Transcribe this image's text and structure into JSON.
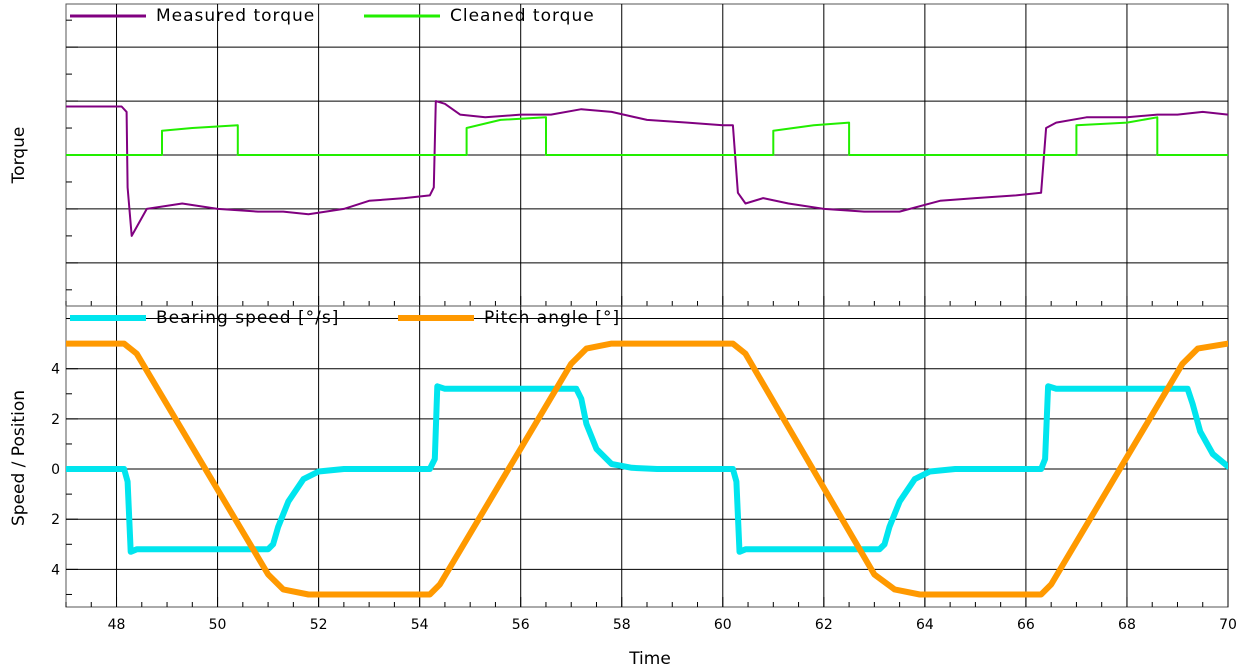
{
  "chart_data": [
    {
      "type": "line",
      "ylabel": "Torque",
      "xlim": [
        47,
        70
      ],
      "ylim": [
        -5.6,
        5.6
      ],
      "yticks_labeled": false,
      "grid": true,
      "legend_placement": "top-left",
      "series": [
        {
          "name": "Measured torque",
          "color": "#800080",
          "points": [
            [
              47,
              1.8
            ],
            [
              48.1,
              1.8
            ],
            [
              48.2,
              1.6
            ],
            [
              48.22,
              -1.2
            ],
            [
              48.3,
              -3.0
            ],
            [
              48.6,
              -2.0
            ],
            [
              49.3,
              -1.8
            ],
            [
              50.0,
              -2.0
            ],
            [
              50.8,
              -2.1
            ],
            [
              51.3,
              -2.1
            ],
            [
              51.8,
              -2.2
            ],
            [
              52.5,
              -2.0
            ],
            [
              53.0,
              -1.7
            ],
            [
              53.7,
              -1.6
            ],
            [
              54.2,
              -1.5
            ],
            [
              54.28,
              -1.2
            ],
            [
              54.32,
              2.0
            ],
            [
              54.5,
              1.9
            ],
            [
              54.8,
              1.5
            ],
            [
              55.3,
              1.4
            ],
            [
              56.0,
              1.5
            ],
            [
              56.6,
              1.5
            ],
            [
              57.2,
              1.7
            ],
            [
              57.8,
              1.6
            ],
            [
              58.5,
              1.3
            ],
            [
              59.3,
              1.2
            ],
            [
              60.0,
              1.1
            ],
            [
              60.2,
              1.1
            ],
            [
              60.3,
              -1.4
            ],
            [
              60.45,
              -1.8
            ],
            [
              60.8,
              -1.6
            ],
            [
              61.3,
              -1.8
            ],
            [
              62.0,
              -2.0
            ],
            [
              62.8,
              -2.1
            ],
            [
              63.5,
              -2.1
            ],
            [
              64.3,
              -1.7
            ],
            [
              65.0,
              -1.6
            ],
            [
              65.8,
              -1.5
            ],
            [
              66.3,
              -1.4
            ],
            [
              66.4,
              1.0
            ],
            [
              66.6,
              1.2
            ],
            [
              67.2,
              1.4
            ],
            [
              68.0,
              1.4
            ],
            [
              68.6,
              1.5
            ],
            [
              69.0,
              1.5
            ],
            [
              69.5,
              1.6
            ],
            [
              70,
              1.5
            ]
          ]
        },
        {
          "name": "Cleaned torque",
          "color": "#22ee00",
          "points": [
            [
              47,
              0
            ],
            [
              48.9,
              0
            ],
            [
              48.9,
              0.9
            ],
            [
              49.5,
              1.0
            ],
            [
              50.4,
              1.1
            ],
            [
              50.4,
              0
            ],
            [
              54.93,
              0
            ],
            [
              54.93,
              1.0
            ],
            [
              55.6,
              1.3
            ],
            [
              56.5,
              1.4
            ],
            [
              56.5,
              0
            ],
            [
              61.0,
              0
            ],
            [
              61.0,
              0.9
            ],
            [
              61.8,
              1.1
            ],
            [
              62.5,
              1.2
            ],
            [
              62.5,
              0
            ],
            [
              67.0,
              0
            ],
            [
              67.0,
              1.1
            ],
            [
              68.0,
              1.2
            ],
            [
              68.6,
              1.4
            ],
            [
              68.6,
              0
            ],
            [
              70,
              0
            ]
          ]
        }
      ]
    },
    {
      "type": "line",
      "ylabel": "Speed / Position",
      "xlabel": "Time",
      "xlim": [
        47,
        70
      ],
      "ylim": [
        -5.5,
        6.5
      ],
      "yticks": [
        {
          "value": 4,
          "label": "4"
        },
        {
          "value": 2,
          "label": "2"
        },
        {
          "value": 0,
          "label": "0"
        },
        {
          "value": -2,
          "label": "2"
        },
        {
          "value": -4,
          "label": "4"
        }
      ],
      "xticks": [
        48,
        50,
        52,
        54,
        56,
        58,
        60,
        62,
        64,
        66,
        68,
        70
      ],
      "grid": true,
      "legend_placement": "top-left",
      "series": [
        {
          "name": "Bearing speed [°/s]",
          "color": "#00e5ee",
          "points": [
            [
              47,
              0
            ],
            [
              48.15,
              0
            ],
            [
              48.22,
              -0.5
            ],
            [
              48.28,
              -3.3
            ],
            [
              48.4,
              -3.2
            ],
            [
              51.0,
              -3.2
            ],
            [
              51.1,
              -3.0
            ],
            [
              51.2,
              -2.3
            ],
            [
              51.4,
              -1.3
            ],
            [
              51.7,
              -0.4
            ],
            [
              52.0,
              -0.1
            ],
            [
              52.5,
              0
            ],
            [
              54.2,
              0
            ],
            [
              54.3,
              0.4
            ],
            [
              54.35,
              3.3
            ],
            [
              54.5,
              3.2
            ],
            [
              57.1,
              3.2
            ],
            [
              57.2,
              2.8
            ],
            [
              57.3,
              1.8
            ],
            [
              57.5,
              0.8
            ],
            [
              57.8,
              0.2
            ],
            [
              58.2,
              0.05
            ],
            [
              58.7,
              0
            ],
            [
              60.2,
              0
            ],
            [
              60.27,
              -0.5
            ],
            [
              60.33,
              -3.3
            ],
            [
              60.45,
              -3.2
            ],
            [
              63.1,
              -3.2
            ],
            [
              63.2,
              -3.0
            ],
            [
              63.3,
              -2.3
            ],
            [
              63.5,
              -1.3
            ],
            [
              63.8,
              -0.4
            ],
            [
              64.1,
              -0.1
            ],
            [
              64.6,
              0
            ],
            [
              66.3,
              0
            ],
            [
              66.38,
              0.4
            ],
            [
              66.44,
              3.3
            ],
            [
              66.6,
              3.2
            ],
            [
              69.2,
              3.2
            ],
            [
              69.3,
              2.6
            ],
            [
              69.45,
              1.5
            ],
            [
              69.7,
              0.6
            ],
            [
              70,
              0.1
            ]
          ]
        },
        {
          "name": "Pitch angle [°]",
          "color": "#ff9900",
          "points": [
            [
              47,
              5
            ],
            [
              48.15,
              5
            ],
            [
              48.4,
              4.6
            ],
            [
              51.0,
              -4.2
            ],
            [
              51.3,
              -4.8
            ],
            [
              51.8,
              -5.0
            ],
            [
              54.2,
              -5.0
            ],
            [
              54.4,
              -4.6
            ],
            [
              57.0,
              4.2
            ],
            [
              57.3,
              4.8
            ],
            [
              57.8,
              5.0
            ],
            [
              60.2,
              5.0
            ],
            [
              60.45,
              4.6
            ],
            [
              63.0,
              -4.2
            ],
            [
              63.4,
              -4.8
            ],
            [
              63.9,
              -5.0
            ],
            [
              66.3,
              -5.0
            ],
            [
              66.5,
              -4.6
            ],
            [
              69.1,
              4.2
            ],
            [
              69.4,
              4.8
            ],
            [
              70,
              5.0
            ]
          ]
        }
      ]
    }
  ]
}
